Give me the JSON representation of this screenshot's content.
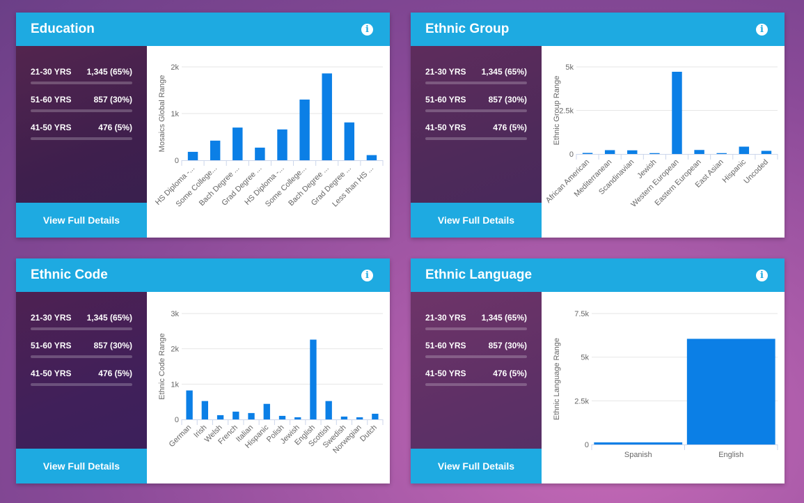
{
  "stats": [
    {
      "range": "21-30 YRS",
      "value": "1,345 (65%)"
    },
    {
      "range": "51-60 YRS",
      "value": "857 (30%)"
    },
    {
      "range": "41-50 YRS",
      "value": "476 (5%)"
    }
  ],
  "details_label": "View Full Details",
  "info_glyph": "i",
  "colors": {
    "header": "#1eaae1",
    "bar": "#0b7fe6"
  },
  "cards": [
    {
      "title": "Education",
      "chart_data": {
        "type": "bar",
        "ylabel": "Mosaics Global Range",
        "ylim": [
          0,
          2000
        ],
        "yticks": [
          0,
          1000,
          2000
        ],
        "ytick_labels": [
          "0",
          "1k",
          "2k"
        ],
        "categories": [
          "HS Diploma -...",
          "Some College...",
          "Bach Degree ...",
          "Grad Degree ...",
          "HS Diploma -...",
          "Some College...",
          "Bach Degree ...",
          "Grad Degree ...",
          "Less than HS ..."
        ],
        "values": [
          180,
          420,
          700,
          270,
          660,
          1300,
          1860,
          810,
          110
        ],
        "label_rotation": -45
      }
    },
    {
      "title": "Ethnic Group",
      "chart_data": {
        "type": "bar",
        "ylabel": "Ethnic Group Range",
        "ylim": [
          0,
          5000
        ],
        "yticks": [
          0,
          2500,
          5000
        ],
        "ytick_labels": [
          "0",
          "2.5k",
          "5k"
        ],
        "categories": [
          "African American",
          "Mediterranean",
          "Scandinavian",
          "Jewish",
          "Western European",
          "Eastern European",
          "East Asian",
          "Hispanic",
          "Uncoded"
        ],
        "values": [
          60,
          220,
          210,
          50,
          4720,
          230,
          50,
          420,
          180
        ],
        "label_rotation": -45
      }
    },
    {
      "title": "Ethnic Code",
      "chart_data": {
        "type": "bar",
        "ylabel": "Ethnic Code Range",
        "ylim": [
          0,
          3000
        ],
        "yticks": [
          0,
          1000,
          2000,
          3000
        ],
        "ytick_labels": [
          "0",
          "1k",
          "2k",
          "3k"
        ],
        "categories": [
          "German",
          "Irish",
          "Welsh",
          "French",
          "Italian",
          "Hispanic",
          "Polish",
          "Jewish",
          "English",
          "Scottish",
          "Swedish",
          "Norwegian",
          "Dutch"
        ],
        "values": [
          820,
          520,
          120,
          220,
          180,
          440,
          100,
          60,
          2260,
          520,
          80,
          60,
          160
        ],
        "label_rotation": -45
      }
    },
    {
      "title": "Ethnic Language",
      "chart_data": {
        "type": "bar",
        "ylabel": "Ethnic Language Range",
        "ylim": [
          0,
          7500
        ],
        "yticks": [
          0,
          2500,
          5000,
          7500
        ],
        "ytick_labels": [
          "0",
          "2.5k",
          "5k",
          "7.5k"
        ],
        "categories": [
          "Spanish",
          "English"
        ],
        "values": [
          120,
          6050
        ],
        "label_rotation": 0
      }
    }
  ]
}
